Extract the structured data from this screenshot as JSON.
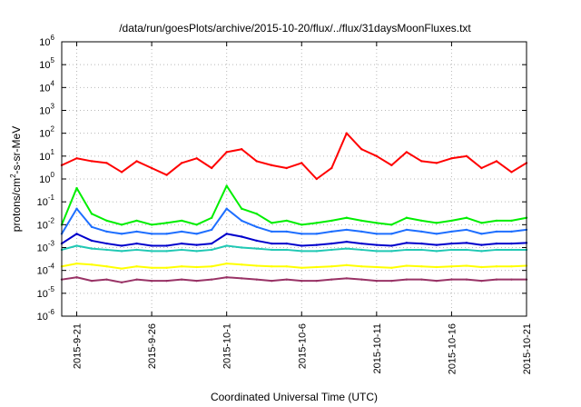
{
  "chart_data": {
    "type": "line",
    "title": "/data/run/goesPlots/archive/2015-10-20/flux/../flux/31daysMoonFluxes.txt",
    "xlabel": "Coordinated Universal Time (UTC)",
    "ylabel": "protons/cm2-s-sr-MeV",
    "ylabel_parts": {
      "pre": "protons/cm",
      "sup": "2",
      "post": "-s-sr-MeV"
    },
    "yscale": "log",
    "ylim": [
      "1e-6",
      "1e6"
    ],
    "y_ticks": [
      {
        "base": "10",
        "exp": "-6",
        "value": -6
      },
      {
        "base": "10",
        "exp": "-5",
        "value": -5
      },
      {
        "base": "10",
        "exp": "-4",
        "value": -4
      },
      {
        "base": "10",
        "exp": "-3",
        "value": -3
      },
      {
        "base": "10",
        "exp": "-2",
        "value": -2
      },
      {
        "base": "10",
        "exp": "-1",
        "value": -1
      },
      {
        "base": "10",
        "exp": "0",
        "value": 0
      },
      {
        "base": "10",
        "exp": "1",
        "value": 1
      },
      {
        "base": "10",
        "exp": "2",
        "value": 2
      },
      {
        "base": "10",
        "exp": "3",
        "value": 3
      },
      {
        "base": "10",
        "exp": "4",
        "value": 4
      },
      {
        "base": "10",
        "exp": "5",
        "value": 5
      },
      {
        "base": "10",
        "exp": "6",
        "value": 6
      }
    ],
    "xlim": [
      "2015-09-20",
      "2015-10-21"
    ],
    "x_ticks": [
      {
        "label": "2015-9-21",
        "date": "2015-09-21"
      },
      {
        "label": "2015-9-26",
        "date": "2015-09-26"
      },
      {
        "label": "2015-10-1",
        "date": "2015-10-01"
      },
      {
        "label": "2015-10-6",
        "date": "2015-10-06"
      },
      {
        "label": "2015-10-11",
        "date": "2015-10-11"
      },
      {
        "label": "2015-10-16",
        "date": "2015-10-16"
      },
      {
        "label": "2015-10-21",
        "date": "2015-10-21"
      }
    ],
    "grid": true,
    "series": [
      {
        "color": "#ff0000",
        "x": [
          "2015-09-20",
          "2015-09-21",
          "2015-09-22",
          "2015-09-23",
          "2015-09-24",
          "2015-09-25",
          "2015-09-26",
          "2015-09-27",
          "2015-09-28",
          "2015-09-29",
          "2015-09-30",
          "2015-10-01",
          "2015-10-02",
          "2015-10-03",
          "2015-10-04",
          "2015-10-05",
          "2015-10-06",
          "2015-10-07",
          "2015-10-08",
          "2015-10-09",
          "2015-10-10",
          "2015-10-11",
          "2015-10-12",
          "2015-10-13",
          "2015-10-14",
          "2015-10-15",
          "2015-10-16",
          "2015-10-17",
          "2015-10-18",
          "2015-10-19",
          "2015-10-20",
          "2015-10-21"
        ],
        "y": [
          4,
          8,
          6,
          5,
          2,
          6,
          3,
          1.5,
          5,
          8,
          3,
          15,
          20,
          6,
          4,
          3,
          5,
          1,
          3,
          100,
          20,
          10,
          4,
          15,
          6,
          5,
          8,
          10,
          3,
          6,
          2,
          5
        ]
      },
      {
        "color": "#00ee00",
        "x": [
          "2015-09-20",
          "2015-09-21",
          "2015-09-22",
          "2015-09-23",
          "2015-09-24",
          "2015-09-25",
          "2015-09-26",
          "2015-09-27",
          "2015-09-28",
          "2015-09-29",
          "2015-09-30",
          "2015-10-01",
          "2015-10-02",
          "2015-10-03",
          "2015-10-04",
          "2015-10-05",
          "2015-10-06",
          "2015-10-07",
          "2015-10-08",
          "2015-10-09",
          "2015-10-10",
          "2015-10-11",
          "2015-10-12",
          "2015-10-13",
          "2015-10-14",
          "2015-10-15",
          "2015-10-16",
          "2015-10-17",
          "2015-10-18",
          "2015-10-19",
          "2015-10-20",
          "2015-10-21"
        ],
        "y": [
          0.01,
          0.4,
          0.03,
          0.015,
          0.01,
          0.015,
          0.01,
          0.012,
          0.015,
          0.01,
          0.02,
          0.5,
          0.05,
          0.03,
          0.012,
          0.015,
          0.01,
          0.012,
          0.015,
          0.02,
          0.015,
          0.012,
          0.01,
          0.02,
          0.015,
          0.012,
          0.015,
          0.02,
          0.012,
          0.015,
          0.015,
          0.02
        ]
      },
      {
        "color": "#1e6fff",
        "x": [
          "2015-09-20",
          "2015-09-21",
          "2015-09-22",
          "2015-09-23",
          "2015-09-24",
          "2015-09-25",
          "2015-09-26",
          "2015-09-27",
          "2015-09-28",
          "2015-09-29",
          "2015-09-30",
          "2015-10-01",
          "2015-10-02",
          "2015-10-03",
          "2015-10-04",
          "2015-10-05",
          "2015-10-06",
          "2015-10-07",
          "2015-10-08",
          "2015-10-09",
          "2015-10-10",
          "2015-10-11",
          "2015-10-12",
          "2015-10-13",
          "2015-10-14",
          "2015-10-15",
          "2015-10-16",
          "2015-10-17",
          "2015-10-18",
          "2015-10-19",
          "2015-10-20",
          "2015-10-21"
        ],
        "y": [
          0.004,
          0.05,
          0.008,
          0.005,
          0.004,
          0.005,
          0.004,
          0.004,
          0.005,
          0.004,
          0.006,
          0.05,
          0.015,
          0.008,
          0.005,
          0.005,
          0.004,
          0.004,
          0.005,
          0.006,
          0.005,
          0.004,
          0.004,
          0.006,
          0.005,
          0.004,
          0.005,
          0.006,
          0.004,
          0.005,
          0.005,
          0.006
        ]
      },
      {
        "color": "#0000cc",
        "x": [
          "2015-09-20",
          "2015-09-21",
          "2015-09-22",
          "2015-09-23",
          "2015-09-24",
          "2015-09-25",
          "2015-09-26",
          "2015-09-27",
          "2015-09-28",
          "2015-09-29",
          "2015-09-30",
          "2015-10-01",
          "2015-10-02",
          "2015-10-03",
          "2015-10-04",
          "2015-10-05",
          "2015-10-06",
          "2015-10-07",
          "2015-10-08",
          "2015-10-09",
          "2015-10-10",
          "2015-10-11",
          "2015-10-12",
          "2015-10-13",
          "2015-10-14",
          "2015-10-15",
          "2015-10-16",
          "2015-10-17",
          "2015-10-18",
          "2015-10-19",
          "2015-10-20",
          "2015-10-21"
        ],
        "y": [
          0.0015,
          0.004,
          0.002,
          0.0015,
          0.0012,
          0.0015,
          0.0012,
          0.0012,
          0.0015,
          0.0013,
          0.0015,
          0.004,
          0.003,
          0.002,
          0.0015,
          0.0015,
          0.0012,
          0.0013,
          0.0015,
          0.0018,
          0.0015,
          0.0013,
          0.0012,
          0.0016,
          0.0015,
          0.0013,
          0.0015,
          0.0016,
          0.0013,
          0.0015,
          0.0015,
          0.0016
        ]
      },
      {
        "color": "#20c8b4",
        "x": [
          "2015-09-20",
          "2015-09-21",
          "2015-09-22",
          "2015-09-23",
          "2015-09-24",
          "2015-09-25",
          "2015-09-26",
          "2015-09-27",
          "2015-09-28",
          "2015-09-29",
          "2015-09-30",
          "2015-10-01",
          "2015-10-02",
          "2015-10-03",
          "2015-10-04",
          "2015-10-05",
          "2015-10-06",
          "2015-10-07",
          "2015-10-08",
          "2015-10-09",
          "2015-10-10",
          "2015-10-11",
          "2015-10-12",
          "2015-10-13",
          "2015-10-14",
          "2015-10-15",
          "2015-10-16",
          "2015-10-17",
          "2015-10-18",
          "2015-10-19",
          "2015-10-20",
          "2015-10-21"
        ],
        "y": [
          0.0008,
          0.0012,
          0.0009,
          0.0008,
          0.0007,
          0.0008,
          0.0007,
          0.0007,
          0.0008,
          0.0007,
          0.0008,
          0.0012,
          0.001,
          0.0009,
          0.0008,
          0.0008,
          0.0007,
          0.0007,
          0.0008,
          0.0009,
          0.0008,
          0.0007,
          0.0007,
          0.0008,
          0.0008,
          0.0007,
          0.0008,
          0.0008,
          0.0007,
          0.0008,
          0.0008,
          0.0008
        ]
      },
      {
        "color": "#ffff00",
        "x": [
          "2015-09-20",
          "2015-09-21",
          "2015-09-22",
          "2015-09-23",
          "2015-09-24",
          "2015-09-25",
          "2015-09-26",
          "2015-09-27",
          "2015-09-28",
          "2015-09-29",
          "2015-09-30",
          "2015-10-01",
          "2015-10-02",
          "2015-10-03",
          "2015-10-04",
          "2015-10-05",
          "2015-10-06",
          "2015-10-07",
          "2015-10-08",
          "2015-10-09",
          "2015-10-10",
          "2015-10-11",
          "2015-10-12",
          "2015-10-13",
          "2015-10-14",
          "2015-10-15",
          "2015-10-16",
          "2015-10-17",
          "2015-10-18",
          "2015-10-19",
          "2015-10-20",
          "2015-10-21"
        ],
        "y": [
          0.00015,
          0.0002,
          0.00018,
          0.00015,
          0.00012,
          0.00015,
          0.00013,
          0.00013,
          0.00015,
          0.00014,
          0.00015,
          0.0002,
          0.00018,
          0.00016,
          0.00015,
          0.00015,
          0.00013,
          0.00014,
          0.00015,
          0.00017,
          0.00015,
          0.00014,
          0.00013,
          0.00016,
          0.00015,
          0.00014,
          0.00015,
          0.00016,
          0.00014,
          0.00015,
          0.00015,
          0.00016
        ]
      },
      {
        "color": "#993366",
        "x": [
          "2015-09-20",
          "2015-09-21",
          "2015-09-22",
          "2015-09-23",
          "2015-09-24",
          "2015-09-25",
          "2015-09-26",
          "2015-09-27",
          "2015-09-28",
          "2015-09-29",
          "2015-09-30",
          "2015-10-01",
          "2015-10-02",
          "2015-10-03",
          "2015-10-04",
          "2015-10-05",
          "2015-10-06",
          "2015-10-07",
          "2015-10-08",
          "2015-10-09",
          "2015-10-10",
          "2015-10-11",
          "2015-10-12",
          "2015-10-13",
          "2015-10-14",
          "2015-10-15",
          "2015-10-16",
          "2015-10-17",
          "2015-10-18",
          "2015-10-19",
          "2015-10-20",
          "2015-10-21"
        ],
        "y": [
          4e-05,
          5e-05,
          3.5e-05,
          4e-05,
          3e-05,
          4e-05,
          3.5e-05,
          3.5e-05,
          4e-05,
          3.5e-05,
          4e-05,
          5e-05,
          4.5e-05,
          4e-05,
          3.5e-05,
          4e-05,
          3.5e-05,
          3.5e-05,
          4e-05,
          4.5e-05,
          4e-05,
          3.5e-05,
          3.5e-05,
          4e-05,
          4e-05,
          3.5e-05,
          4e-05,
          4e-05,
          3.5e-05,
          4e-05,
          4e-05,
          4e-05
        ]
      }
    ]
  }
}
